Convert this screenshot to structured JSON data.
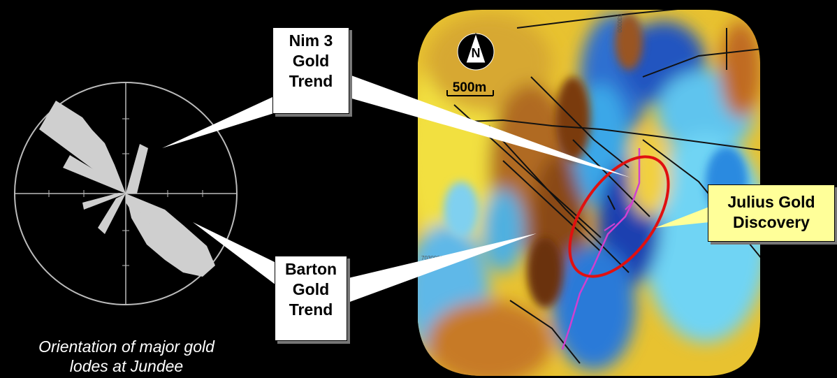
{
  "callouts": {
    "nim3": [
      "Nim 3",
      "Gold",
      "Trend"
    ],
    "barton": [
      "Barton",
      "Gold",
      "Trend"
    ],
    "julius": [
      "Julius Gold",
      "Discovery"
    ]
  },
  "map": {
    "north_label": "N",
    "scale_label": "500m",
    "coordinate_label": "7030000",
    "coordinate_label_top": "330000"
  },
  "rose": {
    "title_lines": [
      "Orientation of major gold",
      "lodes at Jundee"
    ]
  },
  "colors": {
    "background": "#000000",
    "rose_fill": "#cfcfcf",
    "ellipse": "#e01010",
    "vein": "#d040d0",
    "julius_fill": "#ffff99"
  }
}
